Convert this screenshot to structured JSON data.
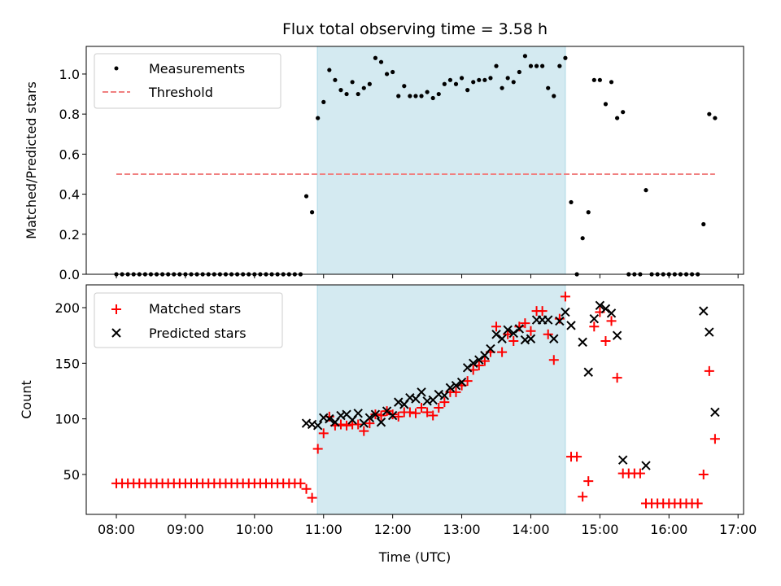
{
  "chart_data": [
    {
      "type": "scatter",
      "title": "Flux total observing time = 3.58 h",
      "ylabel": "Matched/Predicted stars",
      "xlabel": "",
      "xlim_hours": [
        7.564,
        17.08
      ],
      "ylim": [
        0,
        1.138
      ],
      "yticks": [
        "0.0",
        "0.2",
        "0.4",
        "0.6",
        "0.8",
        "1.0"
      ],
      "shaded_interval_hours": [
        10.91,
        14.5
      ],
      "shade_color": "#d4eaf1",
      "start_time": "08:00",
      "step_minutes": 5,
      "series": [
        {
          "name": "Measurements",
          "color": "#000000",
          "values": [
            0,
            0,
            0,
            0,
            0,
            0,
            0,
            0,
            0,
            0,
            0,
            0,
            0,
            0,
            0,
            0,
            0,
            0,
            0,
            0,
            0,
            0,
            0,
            0,
            0,
            0,
            0,
            0,
            0,
            0,
            0,
            0,
            0,
            0.39,
            0.31,
            0.78,
            0.86,
            1.02,
            0.97,
            0.92,
            0.9,
            0.96,
            0.9,
            0.93,
            0.95,
            1.08,
            1.06,
            1.0,
            1.01,
            0.89,
            0.94,
            0.89,
            0.89,
            0.89,
            0.91,
            0.88,
            0.9,
            0.95,
            0.97,
            0.95,
            0.98,
            0.92,
            0.96,
            0.97,
            0.97,
            0.98,
            1.04,
            0.93,
            0.98,
            0.96,
            1.01,
            1.09,
            1.04,
            1.04,
            1.04,
            0.93,
            0.89,
            1.04,
            1.08,
            0.36,
            0,
            0.18,
            0.31,
            0.97,
            0.97,
            0.85,
            0.96,
            0.78,
            0.81,
            0,
            0,
            0,
            0.42,
            0,
            0,
            0,
            0,
            0,
            0,
            0,
            0,
            0,
            0.25,
            0.8,
            0.78
          ]
        }
      ],
      "threshold": {
        "name": "Threshold",
        "value": 0.5,
        "color": "#f08080",
        "from": "08:00",
        "to": "16:40"
      },
      "legend": [
        "Measurements",
        "Threshold"
      ],
      "legend_placement": "upper-left"
    },
    {
      "type": "scatter",
      "title": "",
      "ylabel": "Count",
      "xlabel": "Time (UTC)",
      "xlim_hours": [
        7.564,
        17.08
      ],
      "ylim": [
        14.1,
        220.5
      ],
      "yticks": [
        "50",
        "100",
        "150",
        "200"
      ],
      "xticks": [
        "08:00",
        "09:00",
        "10:00",
        "11:00",
        "12:00",
        "13:00",
        "14:00",
        "15:00",
        "16:00",
        "17:00"
      ],
      "start_time": "08:00",
      "step_minutes": 5,
      "series": [
        {
          "name": "Matched stars",
          "color": "#ff0000",
          "marker": "+",
          "values": [
            42,
            42,
            42,
            42,
            42,
            42,
            42,
            42,
            42,
            42,
            42,
            42,
            42,
            42,
            42,
            42,
            42,
            42,
            42,
            42,
            42,
            42,
            42,
            42,
            42,
            42,
            42,
            42,
            42,
            42,
            42,
            42,
            42,
            37,
            29,
            73,
            87,
            102,
            94,
            95,
            94,
            95,
            95,
            89,
            96,
            104,
            103,
            107,
            104,
            102,
            106,
            106,
            105,
            110,
            106,
            103,
            110,
            115,
            124,
            124,
            130,
            134,
            144,
            148,
            152,
            160,
            183,
            160,
            176,
            170,
            183,
            186,
            179,
            197,
            197,
            176,
            153,
            190,
            210,
            66,
            66,
            30,
            44,
            183,
            196,
            170,
            188,
            137,
            51,
            51,
            51,
            51,
            24,
            24,
            24,
            24,
            24,
            24,
            24,
            24,
            24,
            24,
            50,
            143,
            82
          ]
        },
        {
          "name": "Predicted stars",
          "color": "#000000",
          "marker": "x",
          "values": [
            null,
            null,
            null,
            null,
            null,
            null,
            null,
            null,
            null,
            null,
            null,
            null,
            null,
            null,
            null,
            null,
            null,
            null,
            null,
            null,
            null,
            null,
            null,
            null,
            null,
            null,
            null,
            null,
            null,
            null,
            null,
            null,
            null,
            96,
            95,
            94,
            101,
            100,
            97,
            103,
            104,
            99,
            105,
            96,
            101,
            104,
            97,
            107,
            103,
            115,
            113,
            119,
            118,
            124,
            116,
            117,
            122,
            121,
            128,
            130,
            133,
            146,
            150,
            153,
            157,
            163,
            176,
            172,
            180,
            177,
            181,
            171,
            172,
            189,
            189,
            189,
            172,
            188,
            196,
            184,
            null,
            169,
            142,
            190,
            202,
            199,
            195,
            175,
            63,
            null,
            null,
            null,
            58,
            null,
            null,
            null,
            null,
            null,
            null,
            null,
            null,
            null,
            197,
            178,
            106
          ]
        }
      ],
      "legend": [
        "Matched stars",
        "Predicted stars"
      ],
      "legend_placement": "upper-left"
    }
  ]
}
